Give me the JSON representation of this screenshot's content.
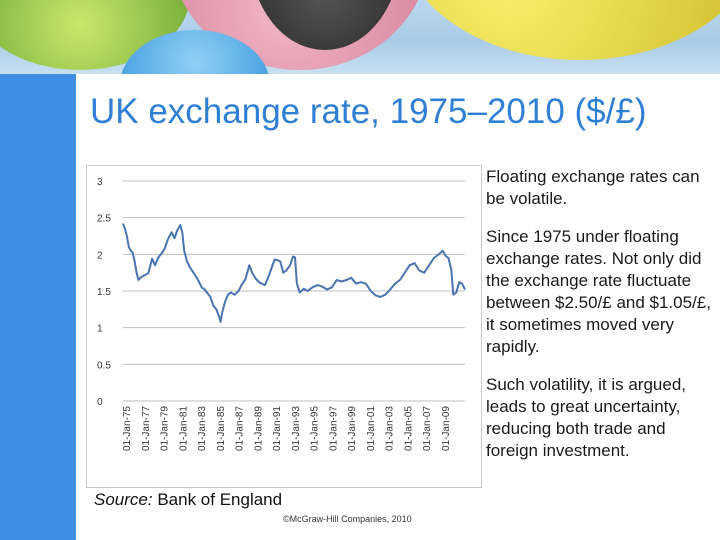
{
  "slide": {
    "title": "UK exchange rate, 1975–2010 ($/£)",
    "source_label": "Source:",
    "source_text": "Bank of England",
    "copyright": "©McGraw-Hill Companies, 2010"
  },
  "notes": [
    "Floating exchange rates can be volatile.",
    "Since 1975 under floating exchange rates. Not only did the exchange rate fluctuate between $2.50/£ and $1.05/£, it sometimes moved very rapidly.",
    "Such volatility, it is argued, leads to great uncertainty, reducing both trade and foreign investment."
  ],
  "colors": {
    "title": "#2f7fd4",
    "side_bar": "#3d8fe6",
    "series": "#4a73b0",
    "gridline": "#bfbfbf"
  },
  "chart_data": {
    "type": "line",
    "title": "",
    "xlabel": "",
    "ylabel": "",
    "ylim": [
      0,
      3
    ],
    "yticks": [
      "0",
      "0.5",
      "1",
      "1.5",
      "2",
      "2.5",
      "3"
    ],
    "xticks": [
      "01-Jan-75",
      "01-Jan-77",
      "01-Jan-79",
      "01-Jan-81",
      "01-Jan-83",
      "01-Jan-85",
      "01-Jan-87",
      "01-Jan-89",
      "01-Jan-91",
      "01-Jan-93",
      "01-Jan-95",
      "01-Jan-97",
      "01-Jan-99",
      "01-Jan-01",
      "01-Jan-03",
      "01-Jan-05",
      "01-Jan-07",
      "01-Jan-09"
    ],
    "xlim": [
      1975,
      2010.2
    ],
    "grid": "horizontal",
    "legend": "none",
    "series": [
      {
        "x": [
          1975.0,
          1975.2,
          1975.4,
          1975.6,
          1975.8,
          1976.0,
          1976.2,
          1976.4,
          1976.6,
          1976.8,
          1977.0,
          1977.3,
          1977.6,
          1978.0,
          1978.3,
          1978.6,
          1979.0,
          1979.3,
          1979.6,
          1980.0,
          1980.3,
          1980.6,
          1980.9,
          1981.1,
          1981.3,
          1981.6,
          1981.9,
          1982.2,
          1982.5,
          1982.8,
          1983.1,
          1983.4,
          1983.7,
          1984.0,
          1984.3,
          1984.6,
          1984.9,
          1985.05,
          1985.2,
          1985.5,
          1985.8,
          1986.1,
          1986.5,
          1986.9,
          1987.2,
          1987.6,
          1988.0,
          1988.3,
          1988.6,
          1989.0,
          1989.3,
          1989.6,
          1990.0,
          1990.3,
          1990.6,
          1990.9,
          1991.2,
          1991.5,
          1991.8,
          1992.2,
          1992.5,
          1992.7,
          1992.9,
          1993.2,
          1993.6,
          1994.0,
          1994.5,
          1995.0,
          1995.5,
          1996.0,
          1996.5,
          1997.0,
          1997.5,
          1998.0,
          1998.5,
          1999.0,
          1999.5,
          2000.0,
          2000.5,
          2001.0,
          2001.5,
          2002.0,
          2002.5,
          2003.0,
          2003.5,
          2004.0,
          2004.5,
          2005.0,
          2005.5,
          2006.0,
          2006.5,
          2007.0,
          2007.5,
          2007.9,
          2008.2,
          2008.5,
          2008.8,
          2009.0,
          2009.3,
          2009.6,
          2009.9,
          2010.2
        ],
        "y": [
          2.42,
          2.35,
          2.25,
          2.1,
          2.05,
          2.02,
          1.9,
          1.75,
          1.65,
          1.68,
          1.7,
          1.72,
          1.74,
          1.94,
          1.85,
          1.95,
          2.02,
          2.08,
          2.2,
          2.3,
          2.22,
          2.33,
          2.4,
          2.3,
          2.05,
          1.9,
          1.82,
          1.76,
          1.7,
          1.63,
          1.55,
          1.52,
          1.47,
          1.42,
          1.3,
          1.25,
          1.15,
          1.08,
          1.2,
          1.35,
          1.45,
          1.48,
          1.45,
          1.5,
          1.58,
          1.66,
          1.85,
          1.75,
          1.68,
          1.62,
          1.6,
          1.58,
          1.7,
          1.82,
          1.93,
          1.92,
          1.9,
          1.75,
          1.78,
          1.85,
          1.97,
          1.96,
          1.6,
          1.48,
          1.53,
          1.5,
          1.55,
          1.58,
          1.56,
          1.52,
          1.55,
          1.65,
          1.63,
          1.65,
          1.68,
          1.6,
          1.62,
          1.6,
          1.5,
          1.44,
          1.42,
          1.45,
          1.52,
          1.6,
          1.65,
          1.75,
          1.85,
          1.88,
          1.78,
          1.75,
          1.85,
          1.95,
          2.0,
          2.05,
          1.98,
          1.95,
          1.78,
          1.45,
          1.48,
          1.62,
          1.6,
          1.52
        ]
      }
    ]
  }
}
